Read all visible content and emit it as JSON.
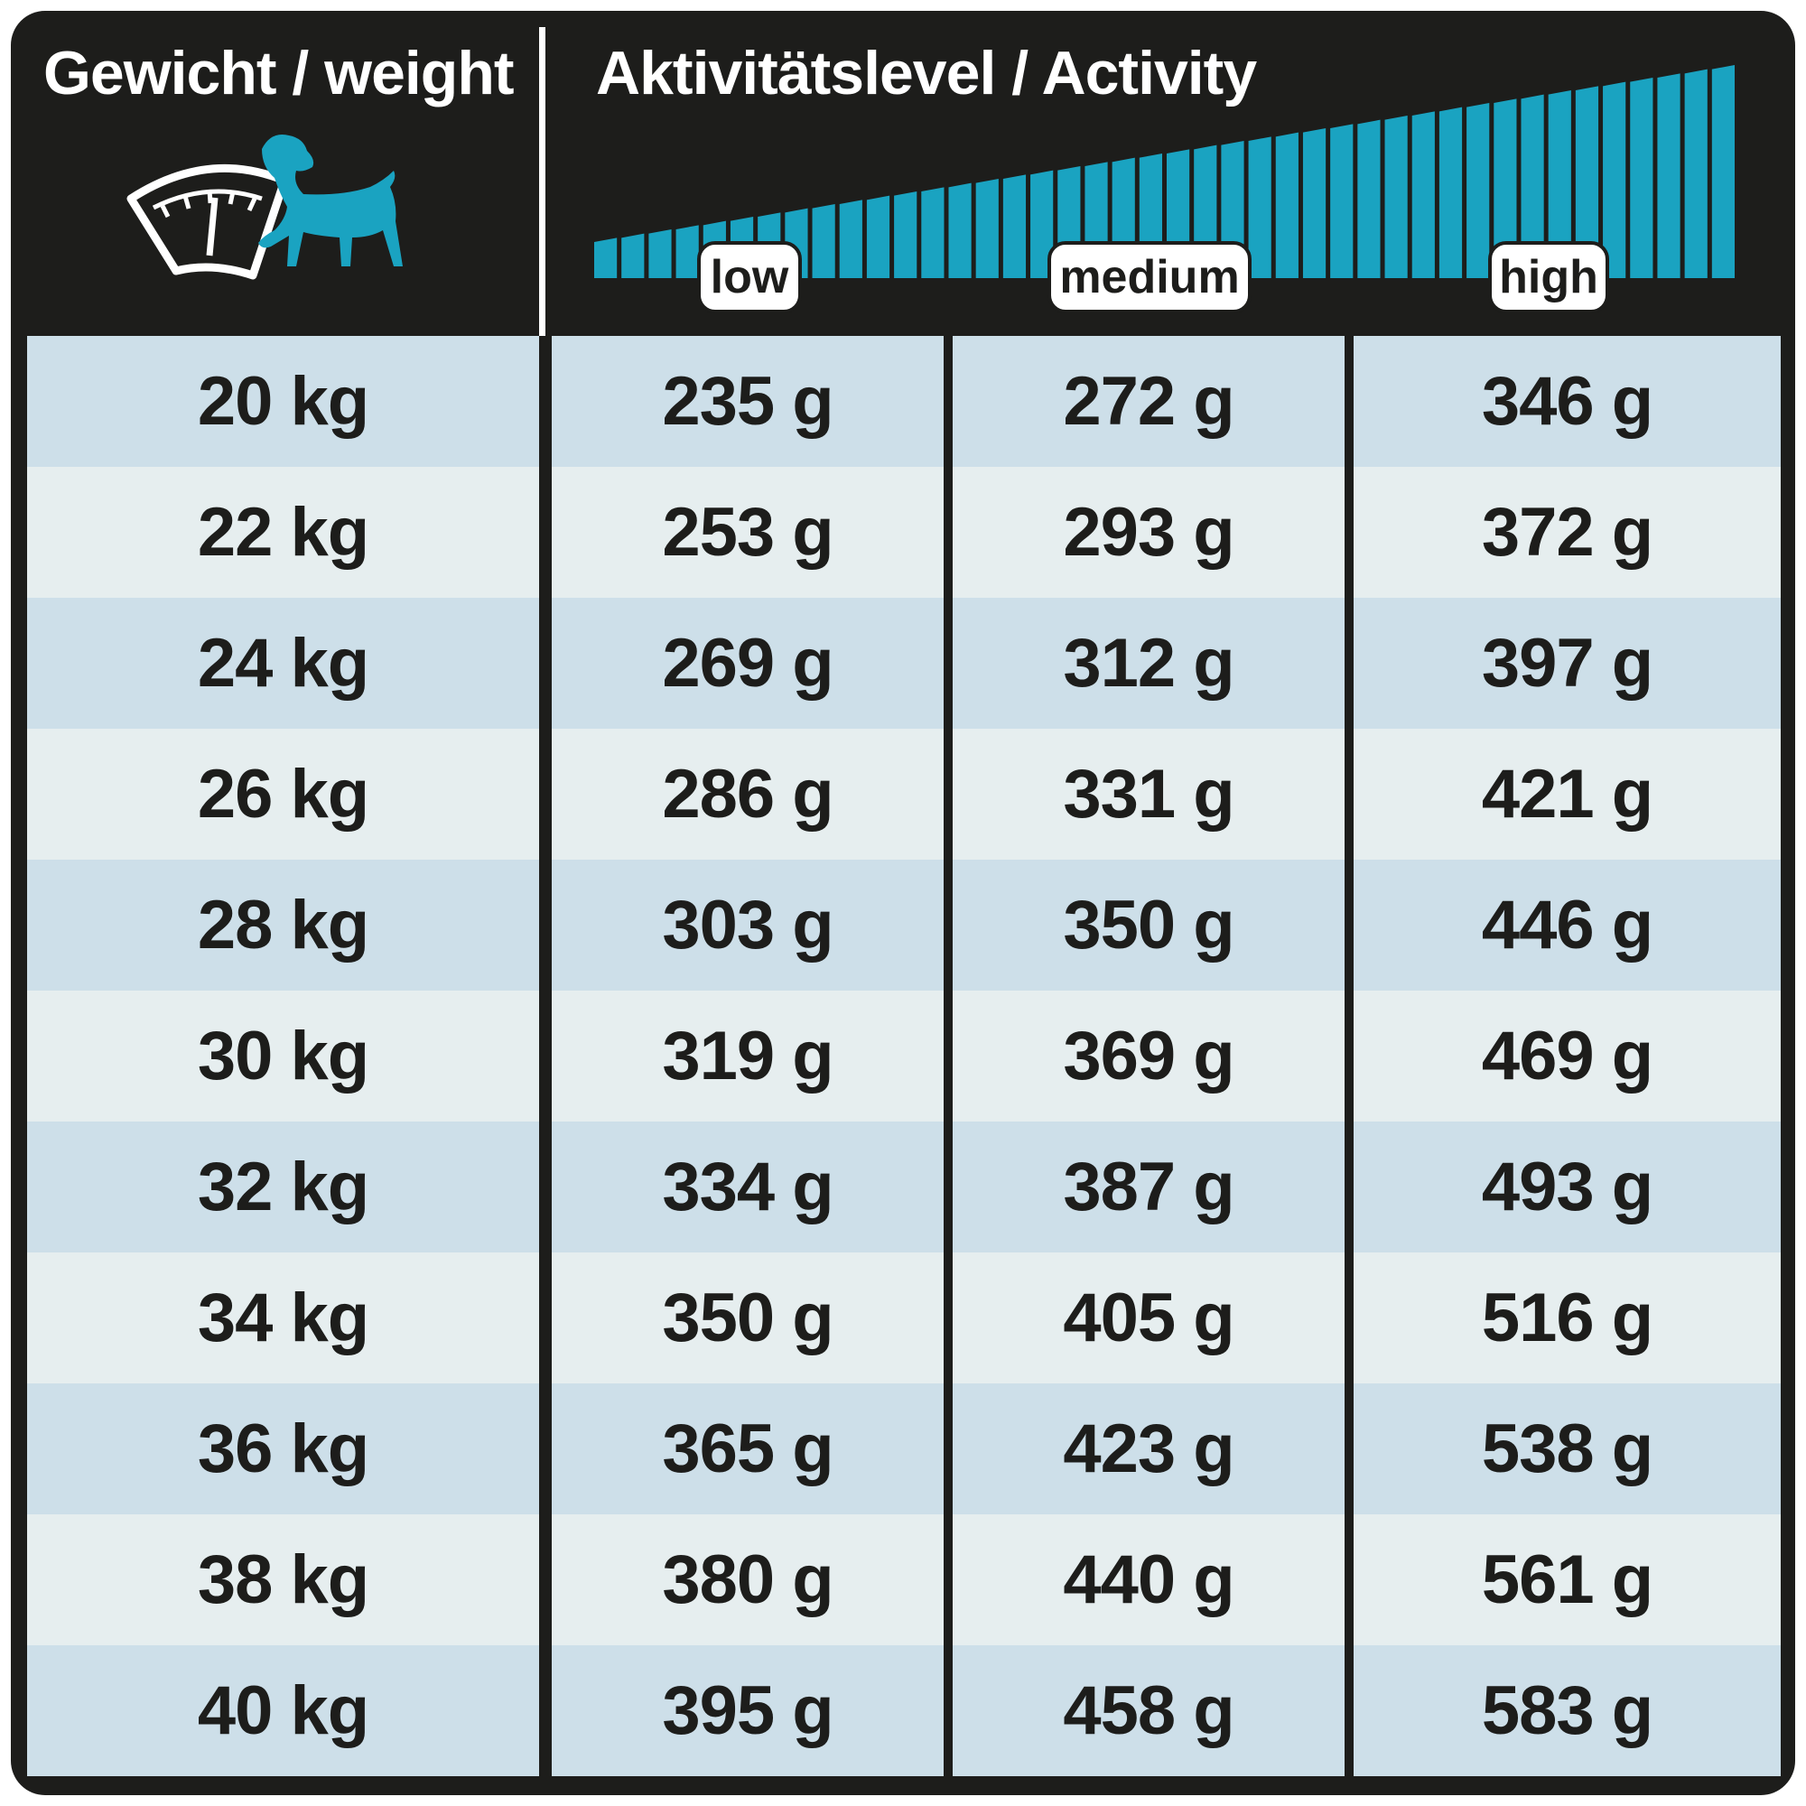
{
  "header": {
    "weight_label": "Gewicht / weight",
    "activity_label": "Aktivitätslevel / Activity",
    "levels": [
      "low",
      "medium",
      "high"
    ]
  },
  "icons": {
    "scale_dog": "scale-with-dog-icon"
  },
  "colors": {
    "background": "#1d1d1b",
    "accent": "#1aa3c1",
    "row_dark": "#cddfe9",
    "row_light": "#e6eeef"
  },
  "table": {
    "rows": [
      {
        "weight": "20 kg",
        "low": "235 g",
        "medium": "272 g",
        "high": "346 g"
      },
      {
        "weight": "22 kg",
        "low": "253 g",
        "medium": "293 g",
        "high": "372 g"
      },
      {
        "weight": "24 kg",
        "low": "269 g",
        "medium": "312 g",
        "high": "397 g"
      },
      {
        "weight": "26 kg",
        "low": "286 g",
        "medium": "331 g",
        "high": "421 g"
      },
      {
        "weight": "28 kg",
        "low": "303 g",
        "medium": "350 g",
        "high": "446 g"
      },
      {
        "weight": "30 kg",
        "low": "319 g",
        "medium": "369 g",
        "high": "469 g"
      },
      {
        "weight": "32 kg",
        "low": "334 g",
        "medium": "387 g",
        "high": "493 g"
      },
      {
        "weight": "34 kg",
        "low": "350 g",
        "medium": "405 g",
        "high": "516 g"
      },
      {
        "weight": "36 kg",
        "low": "365 g",
        "medium": "423 g",
        "high": "538 g"
      },
      {
        "weight": "38 kg",
        "low": "380 g",
        "medium": "440 g",
        "high": "561 g"
      },
      {
        "weight": "40 kg",
        "low": "395 g",
        "medium": "458 g",
        "high": "583 g"
      }
    ]
  }
}
